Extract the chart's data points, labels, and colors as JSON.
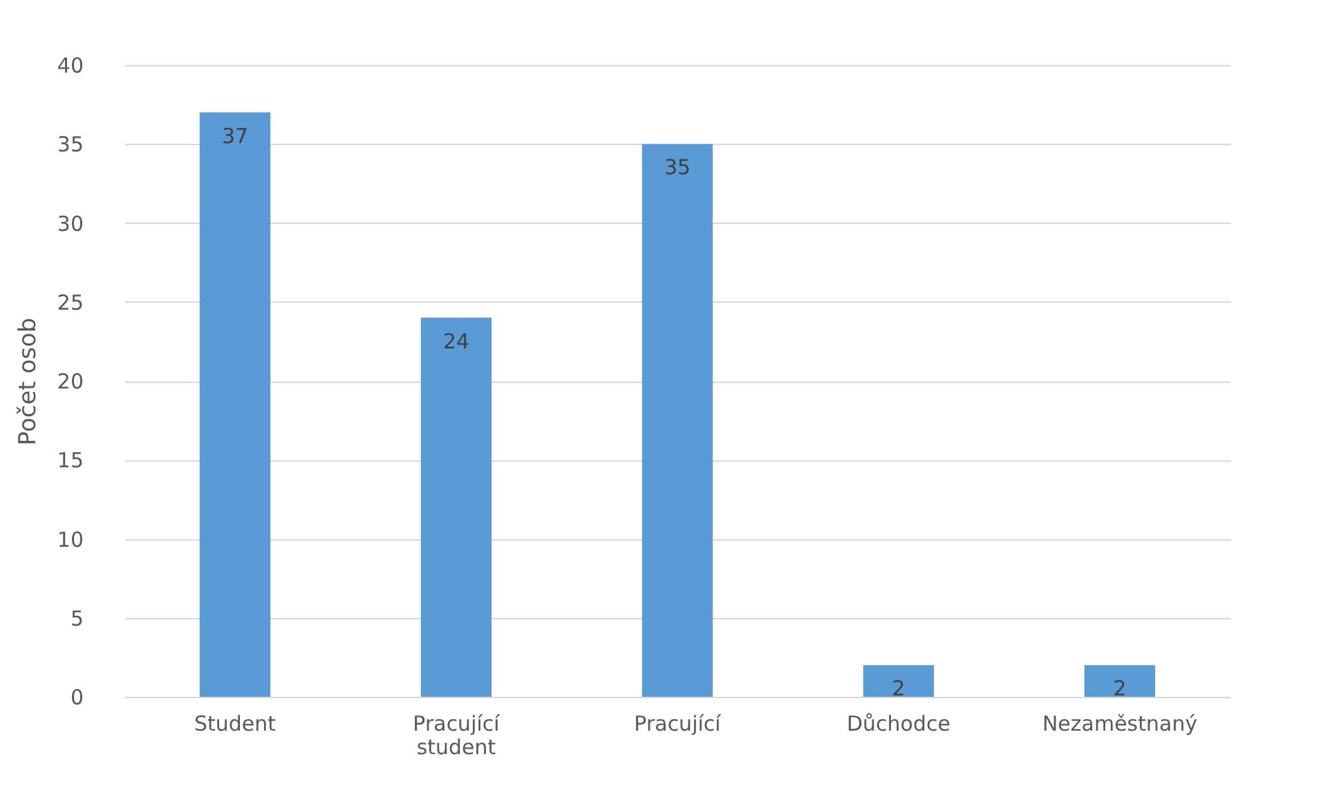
{
  "chart_data": {
    "type": "bar",
    "ylabel": "Počet osob",
    "categories": [
      "Student",
      "Pracující student",
      "Pracující",
      "Důchodce",
      "Nezaměstnaný"
    ],
    "values": [
      37,
      24,
      35,
      2,
      2
    ],
    "color": "#5b9bd5",
    "ylim": [
      0,
      40
    ],
    "yticks": [
      0,
      5,
      10,
      15,
      20,
      25,
      30,
      35,
      40
    ],
    "grid": "y",
    "data_labels": true
  }
}
